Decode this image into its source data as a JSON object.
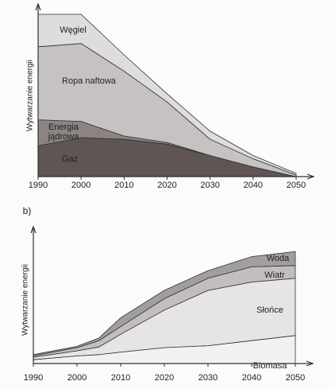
{
  "chart_data": [
    {
      "type": "stacked-area",
      "y_label": "Wytwarzanie energii",
      "x": [
        1990,
        2000,
        2010,
        2020,
        2030,
        2040,
        2050
      ],
      "xlim": [
        1990,
        2050
      ],
      "xticks": [
        1990,
        2000,
        2010,
        2020,
        2030,
        2040,
        2050
      ],
      "ylim": [
        0,
        100
      ],
      "series": [
        {
          "name": "Gaz",
          "color": "#5f5555",
          "values": [
            19,
            24,
            23,
            20,
            13,
            6,
            0
          ]
        },
        {
          "name": "Energia jądrowa",
          "color": "#8c8383",
          "values": [
            16,
            10,
            2,
            1,
            0,
            0,
            0
          ]
        },
        {
          "name": "Ropa naftowa",
          "color": "#c6c2c2",
          "values": [
            45,
            48,
            40,
            25,
            10,
            5,
            1
          ]
        },
        {
          "name": "Węgiel",
          "color": "#dedcdc",
          "values": [
            20,
            18,
            10,
            5,
            5,
            2,
            1
          ]
        }
      ]
    },
    {
      "type": "stacked-area",
      "panel_label": "b)",
      "y_label": "Wytwarzanie energii",
      "x": [
        1990,
        2000,
        2005,
        2010,
        2020,
        2030,
        2040,
        2050
      ],
      "xlim": [
        1990,
        2050
      ],
      "xticks": [
        1990,
        2000,
        2010,
        2020,
        2030,
        2040,
        2050
      ],
      "ylim": [
        0,
        100
      ],
      "series": [
        {
          "name": "Biomasa",
          "color": "#f2f1f1",
          "values": [
            3,
            6,
            7,
            9,
            12.5,
            14,
            18,
            22
          ]
        },
        {
          "name": "Słońce",
          "color": "#e6e4e5",
          "values": [
            2,
            4,
            6,
            14,
            29.5,
            43.5,
            46,
            45
          ]
        },
        {
          "name": "Wiatr",
          "color": "#c2bec0",
          "values": [
            1,
            2.5,
            5,
            6,
            9,
            9.5,
            12,
            10
          ]
        },
        {
          "name": "Woda",
          "color": "#a29ea0",
          "values": [
            1,
            1,
            2,
            7,
            6.5,
            6,
            8,
            11
          ]
        }
      ]
    }
  ]
}
